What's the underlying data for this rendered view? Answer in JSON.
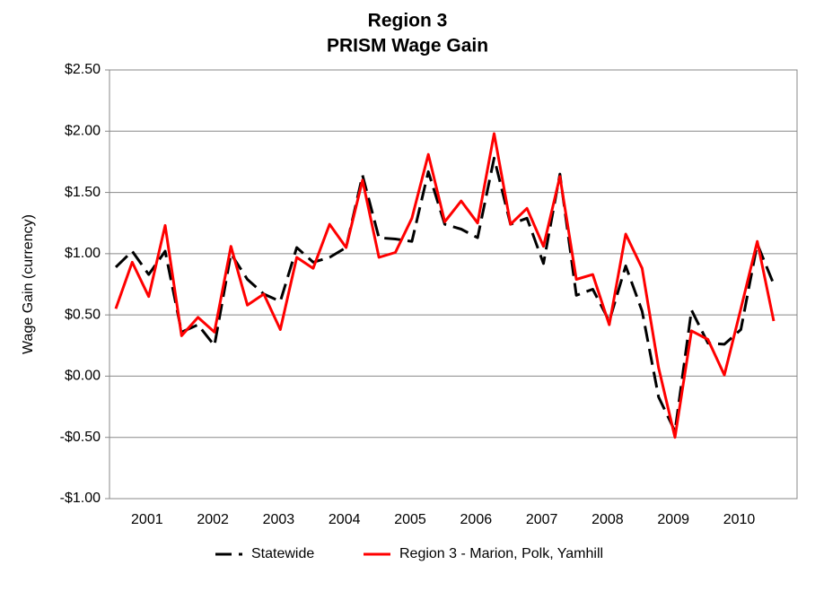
{
  "chart_data": {
    "type": "line",
    "title": "Region 3",
    "subtitle": "PRISM Wage Gain",
    "y_label": "Wage Gain (currency)",
    "x_labels": [
      "2001",
      "2002",
      "2003",
      "2004",
      "2005",
      "2006",
      "2007",
      "2008",
      "2009",
      "2010"
    ],
    "ylim": [
      -1,
      2.5
    ],
    "yticks": [
      {
        "value": -1,
        "label": "-$1.00"
      },
      {
        "value": -0.5,
        "label": "-$0.50"
      },
      {
        "value": 0,
        "label": "$0.00"
      },
      {
        "value": 0.5,
        "label": "$0.50"
      },
      {
        "value": 1,
        "label": "$1.00"
      },
      {
        "value": 1.5,
        "label": "$1.50"
      },
      {
        "value": 2,
        "label": "$2.00"
      },
      {
        "value": 2.5,
        "label": "$2.50"
      }
    ],
    "grid": true,
    "legend": "bottom",
    "series": [
      {
        "name": "Statewide",
        "color": "#000000",
        "dashed": true,
        "values": [
          0.89,
          1.02,
          0.83,
          1.02,
          0.36,
          0.42,
          0.25,
          1.0,
          0.79,
          0.67,
          0.61,
          1.05,
          0.93,
          0.97,
          1.05,
          1.64,
          1.13,
          1.12,
          1.1,
          1.67,
          1.24,
          1.2,
          1.13,
          1.78,
          1.24,
          1.29,
          0.92,
          1.65,
          0.66,
          0.71,
          0.45,
          0.9,
          0.53,
          -0.17,
          -0.45,
          0.54,
          0.27,
          0.26,
          0.38,
          1.08,
          0.75
        ]
      },
      {
        "name": "Region 3 - Marion, Polk, Yamhill",
        "color": "#ff0000",
        "dashed": false,
        "values": [
          0.55,
          0.93,
          0.65,
          1.23,
          0.33,
          0.48,
          0.36,
          1.06,
          0.58,
          0.67,
          0.38,
          0.97,
          0.88,
          1.24,
          1.05,
          1.6,
          0.97,
          1.01,
          1.29,
          1.81,
          1.26,
          1.43,
          1.25,
          1.98,
          1.24,
          1.37,
          1.06,
          1.63,
          0.79,
          0.83,
          0.42,
          1.16,
          0.88,
          0.07,
          -0.5,
          0.37,
          0.3,
          0.01,
          0.55,
          1.1,
          0.45
        ]
      }
    ]
  }
}
